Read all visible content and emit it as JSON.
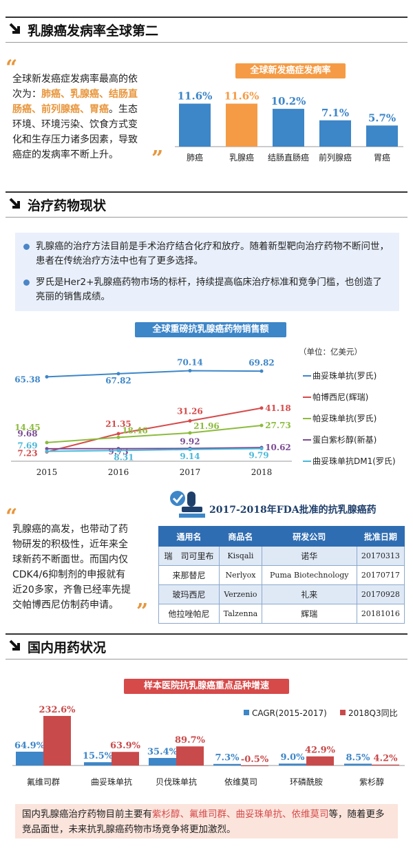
{
  "sections": {
    "s1_title": "乳腺癌发病率全球第二",
    "s2_title": "治疗药物现状",
    "s3_title": "国内用药状况"
  },
  "intro": {
    "line1": "全球新发癌症发病率最高的依",
    "line2_pre": "次为：",
    "line2_hl": "肺癌、乳腺癌、结肠直",
    "line3_hl": "肠癌、前列腺癌、胃癌",
    "line3_post": "。生态",
    "line4": "环境、环境污染、饮食方式变",
    "line5": "化和生存压力诸多因素，导致",
    "line6": "癌症的发病率不断上升。"
  },
  "bullets": [
    "乳腺癌的治疗方法目前是手术治疗结合化疗和放疗。随着新型靶向治疗药物不断问世，患者在传统治疗方法中也有了更多选择。",
    "罗氏是Her2+乳腺癌药物市场的标杆，持续提高临床治疗标准和竞争门槛，也创造了亮丽的销售成绩。"
  ],
  "rd_text": {
    "l1": "乳腺癌的高发，也带动了药",
    "l2": "物研发的积极性，近年来全",
    "l3": "球新药不断面世。而国内仅",
    "l4": "CDK4/6抑制剂的申报就有",
    "l5": "近20多家，齐鲁已经率先提",
    "l6": "交帕博西尼仿制药申请。"
  },
  "fda_table": {
    "title": "2017-2018年FDA批准的抗乳腺癌药",
    "headers": [
      "通用名",
      "商品名",
      "研发公司",
      "批准日期"
    ],
    "rows": [
      [
        "瑞　司可里布",
        "Kisqali",
        "诺华",
        "20170313"
      ],
      [
        "来那替尼",
        "Nerlyox",
        "Puma Biotechnology",
        "20170717"
      ],
      [
        "玻玛西尼",
        "Verzenio",
        "礼来",
        "20170928"
      ],
      [
        "他拉唑帕尼",
        "Talzenna",
        "辉瑞",
        "20181016"
      ]
    ]
  },
  "bottom_note": {
    "pre": "国内乳腺癌治疗药物目前主要有",
    "hl": "紫杉醇、氟维司群、曲妥珠单抗、依维莫司",
    "post": "等，随着更多竞品面世，未来抗乳腺癌药物市场竞争将更加激烈。"
  },
  "colors": {
    "blue": "#3d86c8",
    "orange": "#f59b45",
    "red": "#d64a4a",
    "green": "#8cbb3c",
    "purple": "#7b4b93",
    "cyan": "#4bb8d8"
  },
  "chart_data": [
    {
      "type": "bar",
      "title": "全球新发癌症发病率",
      "categories": [
        "肺癌",
        "乳腺癌",
        "结肠直肠癌",
        "前列腺癌",
        "胃癌"
      ],
      "values": [
        11.6,
        11.6,
        10.2,
        7.1,
        5.7
      ],
      "value_labels": [
        "11.6%",
        "11.6%",
        "10.2%",
        "7.1%",
        "5.7%"
      ],
      "highlight_index": 1,
      "ylim": [
        0,
        13
      ]
    },
    {
      "type": "line",
      "title": "全球重磅抗乳腺癌药物销售额",
      "unit": "（单位：亿美元）",
      "x": [
        "2015",
        "2016",
        "2017",
        "2018"
      ],
      "ylim": [
        0,
        80
      ],
      "series": [
        {
          "name": "曲妥珠单抗(罗氏)",
          "color": "#3d86c8",
          "values": [
            65.38,
            67.82,
            70.14,
            69.82
          ]
        },
        {
          "name": "帕博西尼(辉瑞)",
          "color": "#d64a4a",
          "values": [
            7.23,
            21.35,
            31.26,
            41.18
          ]
        },
        {
          "name": "帕妥珠单抗(罗氏)",
          "color": "#8cbb3c",
          "values": [
            14.45,
            18.46,
            21.96,
            27.73
          ]
        },
        {
          "name": "蛋白紫杉醇(新基)",
          "color": "#7b4b93",
          "values": [
            9.68,
            9.73,
            9.92,
            10.62
          ]
        },
        {
          "name": "曲妥珠单抗DM1(罗氏)",
          "color": "#4bb8d8",
          "values": [
            7.69,
            8.31,
            9.14,
            9.79
          ]
        }
      ]
    },
    {
      "type": "bar",
      "title": "样本医院抗乳腺癌重点品种增速",
      "categories": [
        "氟维司群",
        "曲妥珠单抗",
        "贝伐珠单抗",
        "依维莫司",
        "环磷酰胺",
        "紫杉醇"
      ],
      "ylim": [
        -5,
        240
      ],
      "series": [
        {
          "name": "CAGR(2015-2017)",
          "color": "#3d86c8",
          "values": [
            64.9,
            15.5,
            35.4,
            7.3,
            9.0,
            8.5
          ],
          "labels": [
            "64.9%",
            "15.5%",
            "35.4%",
            "7.3%",
            "9.0%",
            "8.5%"
          ]
        },
        {
          "name": "2018Q3同比",
          "color": "#c94a4a",
          "values": [
            232.6,
            63.9,
            89.7,
            -0.5,
            42.9,
            4.2
          ],
          "labels": [
            "232.6%",
            "63.9%",
            "89.7%",
            "-0.5%",
            "42.9%",
            "4.2%"
          ]
        }
      ]
    }
  ]
}
